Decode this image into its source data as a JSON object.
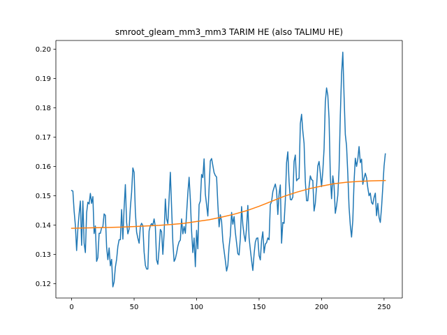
{
  "chart_data": {
    "type": "line",
    "title": "smroot_gleam_mm3_mm3 TARIM HE (also TALIMU HE)",
    "xlabel": "",
    "ylabel": "",
    "xlim": [
      -12.6,
      264.6
    ],
    "ylim": [
      0.1151,
      0.203
    ],
    "grid": false,
    "legend": "none",
    "x_ticks": [
      0,
      50,
      100,
      150,
      200,
      250
    ],
    "x_tick_labels": [
      "0",
      "50",
      "100",
      "150",
      "200",
      "250"
    ],
    "y_ticks": [
      0.12,
      0.13,
      0.14,
      0.15,
      0.16,
      0.17,
      0.18,
      0.19,
      0.2
    ],
    "y_tick_labels": [
      "0.12",
      "0.13",
      "0.14",
      "0.15",
      "0.16",
      "0.17",
      "0.18",
      "0.19",
      "0.20"
    ],
    "series": [
      {
        "color": "#1f77b4",
        "points": [
          [
            0,
            0.1518
          ],
          [
            1,
            0.1516
          ],
          [
            2,
            0.1448
          ],
          [
            3,
            0.1399
          ],
          [
            4,
            0.1313
          ],
          [
            5,
            0.1387
          ],
          [
            6,
            0.1438
          ],
          [
            7,
            0.1482
          ],
          [
            8,
            0.1331
          ],
          [
            9,
            0.1482
          ],
          [
            10,
            0.1338
          ],
          [
            11,
            0.1306
          ],
          [
            12,
            0.1442
          ],
          [
            13,
            0.1478
          ],
          [
            14,
            0.1472
          ],
          [
            15,
            0.1508
          ],
          [
            16,
            0.1474
          ],
          [
            17,
            0.1497
          ],
          [
            18,
            0.1371
          ],
          [
            19,
            0.1397
          ],
          [
            20,
            0.1276
          ],
          [
            21,
            0.1289
          ],
          [
            22,
            0.1372
          ],
          [
            23,
            0.1372
          ],
          [
            24,
            0.1391
          ],
          [
            25,
            0.1394
          ],
          [
            26,
            0.1438
          ],
          [
            27,
            0.1433
          ],
          [
            28,
            0.1324
          ],
          [
            29,
            0.1282
          ],
          [
            30,
            0.1322
          ],
          [
            31,
            0.1261
          ],
          [
            32,
            0.1283
          ],
          [
            33,
            0.1189
          ],
          [
            34,
            0.1206
          ],
          [
            35,
            0.1256
          ],
          [
            36,
            0.1283
          ],
          [
            37,
            0.1327
          ],
          [
            38,
            0.135
          ],
          [
            39,
            0.135
          ],
          [
            40,
            0.1453
          ],
          [
            41,
            0.1352
          ],
          [
            42,
            0.1458
          ],
          [
            43,
            0.1538
          ],
          [
            44,
            0.1409
          ],
          [
            45,
            0.137
          ],
          [
            46,
            0.1386
          ],
          [
            47,
            0.1459
          ],
          [
            48,
            0.1512
          ],
          [
            49,
            0.1595
          ],
          [
            50,
            0.158
          ],
          [
            51,
            0.1445
          ],
          [
            52,
            0.1376
          ],
          [
            53,
            0.1355
          ],
          [
            54,
            0.1338
          ],
          [
            55,
            0.1396
          ],
          [
            56,
            0.1406
          ],
          [
            57,
            0.1398
          ],
          [
            58,
            0.1308
          ],
          [
            59,
            0.1263
          ],
          [
            60,
            0.125
          ],
          [
            61,
            0.125
          ],
          [
            62,
            0.138
          ],
          [
            63,
            0.1398
          ],
          [
            64,
            0.1405
          ],
          [
            65,
            0.14
          ],
          [
            66,
            0.1421
          ],
          [
            67,
            0.1394
          ],
          [
            68,
            0.1281
          ],
          [
            69,
            0.1266
          ],
          [
            70,
            0.1319
          ],
          [
            71,
            0.1385
          ],
          [
            72,
            0.1377
          ],
          [
            73,
            0.13
          ],
          [
            74,
            0.137
          ],
          [
            75,
            0.1489
          ],
          [
            76,
            0.1421
          ],
          [
            77,
            0.1405
          ],
          [
            78,
            0.1491
          ],
          [
            79,
            0.158
          ],
          [
            80,
            0.146
          ],
          [
            81,
            0.1341
          ],
          [
            82,
            0.1276
          ],
          [
            83,
            0.1285
          ],
          [
            84,
            0.1304
          ],
          [
            85,
            0.1328
          ],
          [
            86,
            0.1343
          ],
          [
            87,
            0.1349
          ],
          [
            88,
            0.1421
          ],
          [
            89,
            0.137
          ],
          [
            90,
            0.1395
          ],
          [
            91,
            0.1372
          ],
          [
            92,
            0.1439
          ],
          [
            93,
            0.1509
          ],
          [
            94,
            0.1563
          ],
          [
            95,
            0.1487
          ],
          [
            96,
            0.1379
          ],
          [
            97,
            0.1306
          ],
          [
            98,
            0.1356
          ],
          [
            99,
            0.1258
          ],
          [
            100,
            0.1382
          ],
          [
            101,
            0.1319
          ],
          [
            102,
            0.147
          ],
          [
            103,
            0.1482
          ],
          [
            104,
            0.1573
          ],
          [
            105,
            0.1562
          ],
          [
            106,
            0.1626
          ],
          [
            107,
            0.1506
          ],
          [
            108,
            0.1469
          ],
          [
            109,
            0.1431
          ],
          [
            110,
            0.1528
          ],
          [
            111,
            0.1619
          ],
          [
            112,
            0.1627
          ],
          [
            113,
            0.1603
          ],
          [
            114,
            0.1579
          ],
          [
            115,
            0.1569
          ],
          [
            116,
            0.1564
          ],
          [
            117,
            0.1471
          ],
          [
            118,
            0.1394
          ],
          [
            119,
            0.1435
          ],
          [
            120,
            0.1413
          ],
          [
            121,
            0.1346
          ],
          [
            122,
            0.1312
          ],
          [
            123,
            0.1279
          ],
          [
            124,
            0.1243
          ],
          [
            125,
            0.1262
          ],
          [
            126,
            0.1326
          ],
          [
            127,
            0.1364
          ],
          [
            128,
            0.1443
          ],
          [
            129,
            0.1403
          ],
          [
            130,
            0.1429
          ],
          [
            131,
            0.1375
          ],
          [
            132,
            0.1339
          ],
          [
            133,
            0.1302
          ],
          [
            134,
            0.1298
          ],
          [
            135,
            0.1354
          ],
          [
            136,
            0.1463
          ],
          [
            137,
            0.1401
          ],
          [
            138,
            0.1366
          ],
          [
            139,
            0.1344
          ],
          [
            140,
            0.1392
          ],
          [
            141,
            0.1467
          ],
          [
            142,
            0.1357
          ],
          [
            143,
            0.1316
          ],
          [
            144,
            0.1279
          ],
          [
            145,
            0.1245
          ],
          [
            146,
            0.1301
          ],
          [
            147,
            0.1342
          ],
          [
            148,
            0.1355
          ],
          [
            149,
            0.1356
          ],
          [
            150,
            0.1296
          ],
          [
            151,
            0.1281
          ],
          [
            152,
            0.1348
          ],
          [
            153,
            0.1377
          ],
          [
            154,
            0.1305
          ],
          [
            155,
            0.1335
          ],
          [
            156,
            0.134
          ],
          [
            157,
            0.1356
          ],
          [
            158,
            0.135
          ],
          [
            159,
            0.147
          ],
          [
            160,
            0.148
          ],
          [
            161,
            0.1514
          ],
          [
            162,
            0.1528
          ],
          [
            163,
            0.154
          ],
          [
            164,
            0.1517
          ],
          [
            165,
            0.1436
          ],
          [
            166,
            0.1506
          ],
          [
            167,
            0.1537
          ],
          [
            168,
            0.1338
          ],
          [
            169,
            0.1409
          ],
          [
            170,
            0.1406
          ],
          [
            171,
            0.1485
          ],
          [
            172,
            0.1613
          ],
          [
            173,
            0.165
          ],
          [
            174,
            0.1548
          ],
          [
            175,
            0.1487
          ],
          [
            176,
            0.1486
          ],
          [
            177,
            0.1496
          ],
          [
            178,
            0.1617
          ],
          [
            179,
            0.1639
          ],
          [
            180,
            0.1551
          ],
          [
            181,
            0.1557
          ],
          [
            182,
            0.1559
          ],
          [
            183,
            0.1746
          ],
          [
            184,
            0.1778
          ],
          [
            185,
            0.172
          ],
          [
            186,
            0.1679
          ],
          [
            187,
            0.1548
          ],
          [
            188,
            0.1483
          ],
          [
            189,
            0.1483
          ],
          [
            190,
            0.1531
          ],
          [
            191,
            0.1568
          ],
          [
            192,
            0.1555
          ],
          [
            193,
            0.1552
          ],
          [
            194,
            0.1448
          ],
          [
            195,
            0.1474
          ],
          [
            196,
            0.1533
          ],
          [
            197,
            0.1602
          ],
          [
            198,
            0.1617
          ],
          [
            199,
            0.1577
          ],
          [
            200,
            0.1531
          ],
          [
            201,
            0.1584
          ],
          [
            202,
            0.166
          ],
          [
            203,
            0.182
          ],
          [
            204,
            0.1868
          ],
          [
            205,
            0.1843
          ],
          [
            206,
            0.1762
          ],
          [
            207,
            0.1568
          ],
          [
            208,
            0.149
          ],
          [
            209,
            0.1568
          ],
          [
            210,
            0.1534
          ],
          [
            211,
            0.144
          ],
          [
            212,
            0.1466
          ],
          [
            213,
            0.1502
          ],
          [
            214,
            0.1591
          ],
          [
            215,
            0.1774
          ],
          [
            216,
            0.1915
          ],
          [
            217,
            0.199
          ],
          [
            218,
            0.1841
          ],
          [
            219,
            0.1709
          ],
          [
            220,
            0.167
          ],
          [
            221,
            0.1574
          ],
          [
            222,
            0.1461
          ],
          [
            223,
            0.1399
          ],
          [
            224,
            0.1359
          ],
          [
            225,
            0.1416
          ],
          [
            226,
            0.1548
          ],
          [
            227,
            0.1628
          ],
          [
            228,
            0.16
          ],
          [
            229,
            0.1625
          ],
          [
            230,
            0.1668
          ],
          [
            231,
            0.1613
          ],
          [
            232,
            0.1625
          ],
          [
            233,
            0.1539
          ],
          [
            234,
            0.156
          ],
          [
            235,
            0.1577
          ],
          [
            236,
            0.1561
          ],
          [
            237,
            0.1527
          ],
          [
            238,
            0.15
          ],
          [
            239,
            0.1509
          ],
          [
            240,
            0.1477
          ],
          [
            241,
            0.1471
          ],
          [
            242,
            0.1494
          ],
          [
            243,
            0.1509
          ],
          [
            244,
            0.1432
          ],
          [
            245,
            0.1474
          ],
          [
            246,
            0.1426
          ],
          [
            247,
            0.1409
          ],
          [
            248,
            0.146
          ],
          [
            249,
            0.153
          ],
          [
            250,
            0.1601
          ],
          [
            251,
            0.1643
          ]
        ]
      },
      {
        "color": "#ff7f0e",
        "points": [
          [
            0,
            0.1389
          ],
          [
            10,
            0.139
          ],
          [
            20,
            0.1391
          ],
          [
            30,
            0.1392
          ],
          [
            40,
            0.1393
          ],
          [
            50,
            0.1395
          ],
          [
            60,
            0.1397
          ],
          [
            70,
            0.1399
          ],
          [
            80,
            0.1402
          ],
          [
            90,
            0.1406
          ],
          [
            100,
            0.1412
          ],
          [
            110,
            0.1418
          ],
          [
            120,
            0.1427
          ],
          [
            130,
            0.1437
          ],
          [
            140,
            0.1449
          ],
          [
            150,
            0.1464
          ],
          [
            160,
            0.1481
          ],
          [
            170,
            0.1498
          ],
          [
            180,
            0.1512
          ],
          [
            190,
            0.1524
          ],
          [
            200,
            0.1533
          ],
          [
            210,
            0.1541
          ],
          [
            220,
            0.1546
          ],
          [
            230,
            0.1549
          ],
          [
            240,
            0.1551
          ],
          [
            251,
            0.1552
          ]
        ]
      }
    ]
  }
}
